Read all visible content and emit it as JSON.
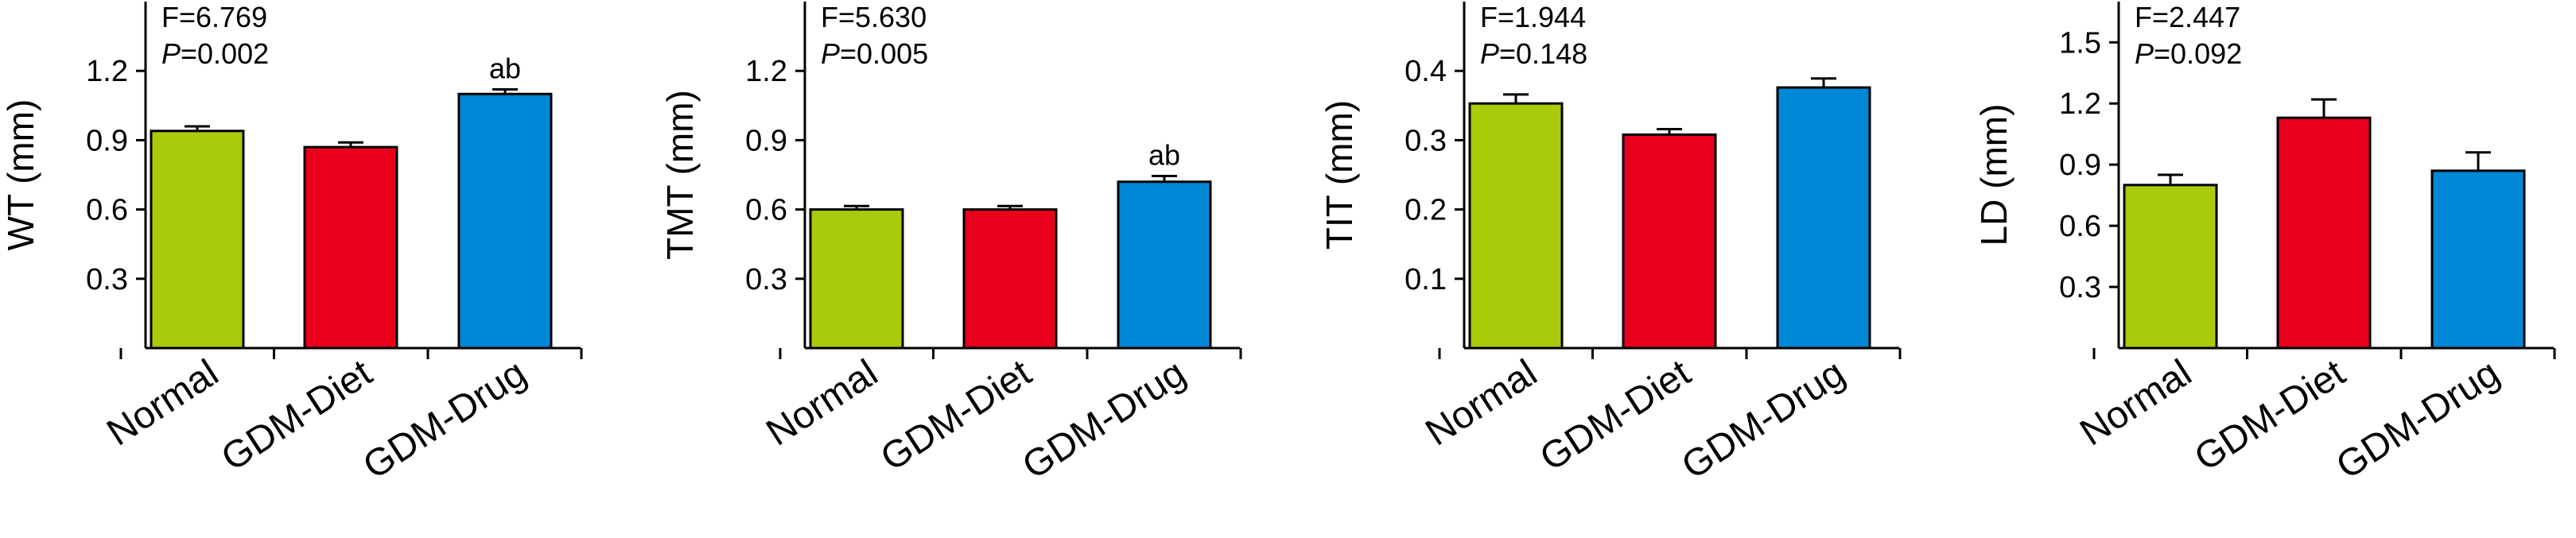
{
  "colors": {
    "Normal": "#a8cc0a",
    "GDM-Diet": "#e8001c",
    "GDM-Drug": "#0088d6",
    "axis": "#000000"
  },
  "chart_data": [
    {
      "type": "bar",
      "ylabel": "WT (mm)",
      "categories": [
        "Normal",
        "GDM-Diet",
        "GDM-Drug"
      ],
      "values": [
        0.94,
        0.87,
        1.1
      ],
      "errors": [
        0.02,
        0.02,
        0.02
      ],
      "ylim": [
        0,
        1.5
      ],
      "yticks": [
        0.3,
        0.6,
        0.9,
        1.2
      ],
      "ytick_labels": [
        "0.3",
        "0.6",
        "0.9",
        "1.2"
      ],
      "stat_f": "F=6.769",
      "stat_p_label": "P",
      "stat_p_value": "=0.002",
      "annotations": [
        "",
        "",
        "ab"
      ]
    },
    {
      "type": "bar",
      "ylabel": "TMT (mm)",
      "categories": [
        "Normal",
        "GDM-Diet",
        "GDM-Drug"
      ],
      "values": [
        0.6,
        0.6,
        0.72
      ],
      "errors": [
        0.015,
        0.015,
        0.025
      ],
      "ylim": [
        0,
        1.5
      ],
      "yticks": [
        0.3,
        0.6,
        0.9,
        1.2
      ],
      "ytick_labels": [
        "0.3",
        "0.6",
        "0.9",
        "1.2"
      ],
      "stat_f": "F=5.630",
      "stat_p_label": "P",
      "stat_p_value": "=0.005",
      "annotations": [
        "",
        "",
        "ab"
      ]
    },
    {
      "type": "bar",
      "ylabel": "TIT (mm)",
      "categories": [
        "Normal",
        "GDM-Diet",
        "GDM-Drug"
      ],
      "values": [
        0.353,
        0.308,
        0.376
      ],
      "errors": [
        0.013,
        0.008,
        0.013
      ],
      "ylim": [
        0,
        0.5
      ],
      "yticks": [
        0.1,
        0.2,
        0.3,
        0.4
      ],
      "ytick_labels": [
        "0.1",
        "0.2",
        "0.3",
        "0.4"
      ],
      "stat_f": "F=1.944",
      "stat_p_label": "P",
      "stat_p_value": "=0.148",
      "annotations": [
        "",
        "",
        ""
      ]
    },
    {
      "type": "bar",
      "ylabel": "LD (mm)",
      "categories": [
        "Normal",
        "GDM-Diet",
        "GDM-Drug"
      ],
      "values": [
        0.8,
        1.13,
        0.87
      ],
      "errors": [
        0.05,
        0.09,
        0.09
      ],
      "ylim": [
        0,
        1.7
      ],
      "yticks": [
        0.3,
        0.6,
        0.9,
        1.2,
        1.5
      ],
      "ytick_labels": [
        "0.3",
        "0.6",
        "0.9",
        "1.2",
        "1.5"
      ],
      "stat_f": "F=2.447",
      "stat_p_label": "P",
      "stat_p_value": "=0.092",
      "annotations": [
        "",
        "",
        ""
      ]
    }
  ]
}
